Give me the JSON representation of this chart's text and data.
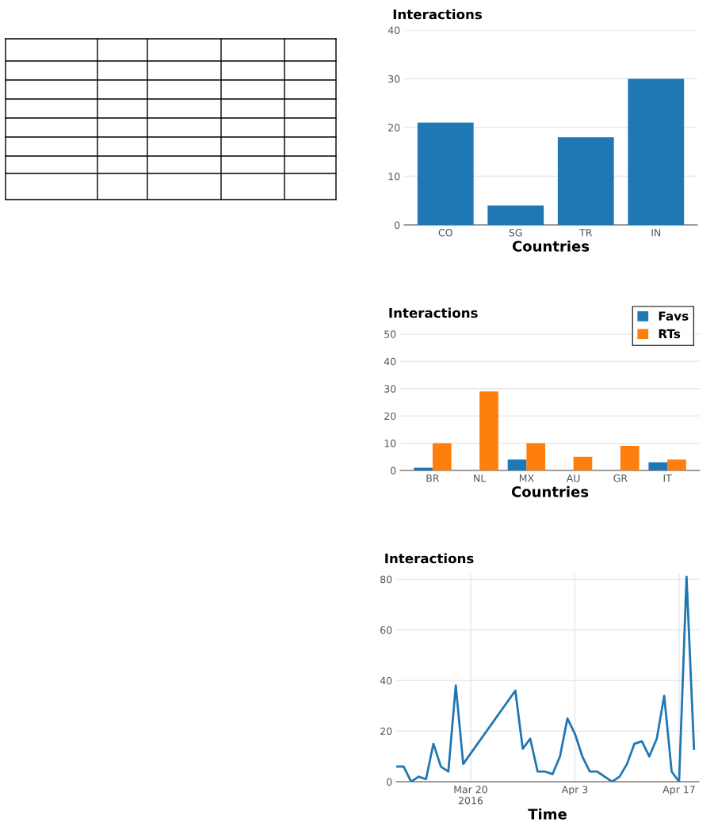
{
  "chart_data": [
    {
      "type": "bar",
      "title": "Interactions",
      "xlabel": "Countries",
      "categories": [
        "CO",
        "SG",
        "TR",
        "IN"
      ],
      "values": [
        21,
        4,
        18,
        30
      ],
      "color": "#1f77b4",
      "ylim": [
        0,
        40
      ],
      "yticks": [
        0,
        10,
        20,
        30,
        40
      ],
      "grid": "y",
      "legend": false
    },
    {
      "type": "bar",
      "title": "Interactions",
      "xlabel": "Countries",
      "categories": [
        "BR",
        "NL",
        "MX",
        "AU",
        "GR",
        "IT"
      ],
      "series": [
        {
          "name": "Favs",
          "color": "#1f77b4",
          "values": [
            1,
            0,
            4,
            0,
            0,
            3
          ]
        },
        {
          "name": "RTs",
          "color": "#ff7f0e",
          "values": [
            10,
            29,
            10,
            5,
            9,
            4
          ]
        }
      ],
      "ylim": [
        0,
        52
      ],
      "yticks": [
        0,
        10,
        20,
        30,
        40,
        50
      ],
      "grid": "y",
      "legend": "top right"
    },
    {
      "type": "line",
      "title": "Interactions",
      "xlabel": "Time",
      "x": [
        "2016-03-10",
        "2016-03-11",
        "2016-03-12",
        "2016-03-13",
        "2016-03-14",
        "2016-03-15",
        "2016-03-16",
        "2016-03-17",
        "2016-03-18",
        "2016-03-19",
        "2016-03-26",
        "2016-03-27",
        "2016-03-28",
        "2016-03-29",
        "2016-03-30",
        "2016-03-31",
        "2016-04-01",
        "2016-04-02",
        "2016-04-03",
        "2016-04-04",
        "2016-04-05",
        "2016-04-06",
        "2016-04-08",
        "2016-04-09",
        "2016-04-10",
        "2016-04-11",
        "2016-04-12",
        "2016-04-13",
        "2016-04-14",
        "2016-04-15",
        "2016-04-16",
        "2016-04-17",
        "2016-04-18",
        "2016-04-19"
      ],
      "series": [
        {
          "color": "#1f77b4",
          "values": [
            6,
            6,
            0,
            2,
            1,
            15,
            6,
            4,
            38,
            7,
            36,
            13,
            17,
            4,
            4,
            3,
            10,
            25,
            19,
            10,
            4,
            4,
            0,
            2,
            7,
            15,
            16,
            10,
            17,
            34,
            4,
            0,
            81,
            13
          ]
        }
      ],
      "xlim": [
        "2016-03-10",
        "2016-04-19T16:00"
      ],
      "xticks": [
        {
          "value": "2016-03-20",
          "label": "Mar 20\n2016"
        },
        {
          "value": "2016-04-03",
          "label": "Apr 3"
        },
        {
          "value": "2016-04-17",
          "label": "Apr 17"
        }
      ],
      "ylim": [
        0,
        82
      ],
      "yticks": [
        0,
        20,
        40,
        60,
        80
      ],
      "grid": true,
      "legend": false,
      "marker": "none",
      "line_style": "solid"
    }
  ]
}
